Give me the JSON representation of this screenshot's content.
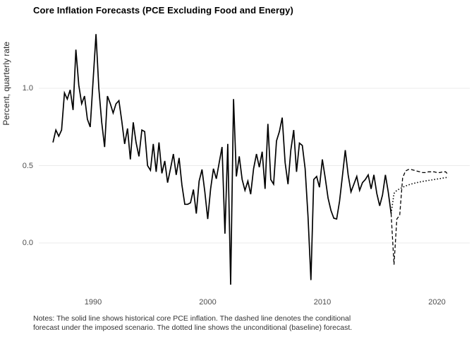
{
  "title": "Core Inflation Forecasts (PCE Excluding Food and Energy)",
  "y_axis_label": "Percent, quarterly rate",
  "notes": {
    "line1": "Notes: The solid line shows historical core PCE inflation. The dashed line denotes the conditional",
    "line2": "forecast under the imposed scenario. The dotted line shows the unconditional (baseline) forecast."
  },
  "colors": {
    "background": "#ffffff",
    "line": "#000000",
    "gridline": "#ebebeb",
    "tick_label": "#4d4d4d",
    "title_text": "#000000",
    "notes_text": "#333333"
  },
  "chart_data": {
    "type": "line",
    "title": "Core Inflation Forecasts (PCE Excluding Food and Energy)",
    "xlabel": "",
    "ylabel": "Percent, quarterly rate",
    "x_ticks": [
      1990,
      2000,
      2010,
      2020
    ],
    "y_ticks": [
      "0.0",
      "0.5",
      "1.0"
    ],
    "xlim": [
      1985.3,
      2022.9
    ],
    "ylim": [
      -0.31,
      1.41
    ],
    "grid": "horizontal-only",
    "legend": "none",
    "frequency": "quarterly",
    "notes": "Notes: The solid line shows historical core PCE inflation. The dashed line denotes the conditional forecast under the imposed scenario. The dotted line shows the unconditional (baseline) forecast.",
    "series": [
      {
        "name": "Historical core PCE inflation",
        "style": "solid",
        "start": 1986.5,
        "step": 0.25,
        "values": [
          0.65,
          0.73,
          0.69,
          0.73,
          0.97,
          0.93,
          0.99,
          0.86,
          1.25,
          1.02,
          0.9,
          0.95,
          0.8,
          0.75,
          1.05,
          1.35,
          1.0,
          0.78,
          0.62,
          0.95,
          0.9,
          0.84,
          0.9,
          0.92,
          0.79,
          0.64,
          0.74,
          0.54,
          0.78,
          0.65,
          0.56,
          0.73,
          0.72,
          0.5,
          0.47,
          0.64,
          0.46,
          0.65,
          0.45,
          0.53,
          0.39,
          0.48,
          0.575,
          0.44,
          0.55,
          0.375,
          0.25,
          0.25,
          0.26,
          0.345,
          0.19,
          0.4,
          0.475,
          0.33,
          0.155,
          0.35,
          0.48,
          0.415,
          0.52,
          0.62,
          0.06,
          0.64,
          -0.27,
          0.93,
          0.43,
          0.56,
          0.41,
          0.34,
          0.4,
          0.315,
          0.48,
          0.575,
          0.49,
          0.59,
          0.35,
          0.77,
          0.41,
          0.38,
          0.66,
          0.72,
          0.81,
          0.52,
          0.38,
          0.6,
          0.73,
          0.46,
          0.645,
          0.63,
          0.48,
          0.17,
          -0.24,
          0.41,
          0.43,
          0.36,
          0.54,
          0.42,
          0.29,
          0.21,
          0.16,
          0.155,
          0.27,
          0.43,
          0.6,
          0.44,
          0.33,
          0.38,
          0.43,
          0.34,
          0.39,
          0.41,
          0.44,
          0.35,
          0.44,
          0.32,
          0.24,
          0.31,
          0.44,
          0.33,
          0.19
        ]
      },
      {
        "name": "Conditional forecast under the imposed scenario",
        "style": "dashed",
        "start": 2016.0,
        "step": 0.25,
        "values": [
          0.19,
          -0.14,
          0.155,
          0.18,
          0.42,
          0.465,
          0.475,
          0.475,
          0.47,
          0.465,
          0.46,
          0.455,
          0.455,
          0.46,
          0.46,
          0.46,
          0.455,
          0.455,
          0.46,
          0.46,
          0.44
        ]
      },
      {
        "name": "Unconditional (baseline) forecast",
        "style": "dotted",
        "start": 2016.0,
        "step": 0.25,
        "values": [
          0.19,
          0.32,
          0.34,
          0.35,
          0.36,
          0.368,
          0.375,
          0.381,
          0.386,
          0.39,
          0.394,
          0.398,
          0.401,
          0.404,
          0.407,
          0.41,
          0.413,
          0.416,
          0.419,
          0.422,
          0.425
        ]
      }
    ]
  }
}
